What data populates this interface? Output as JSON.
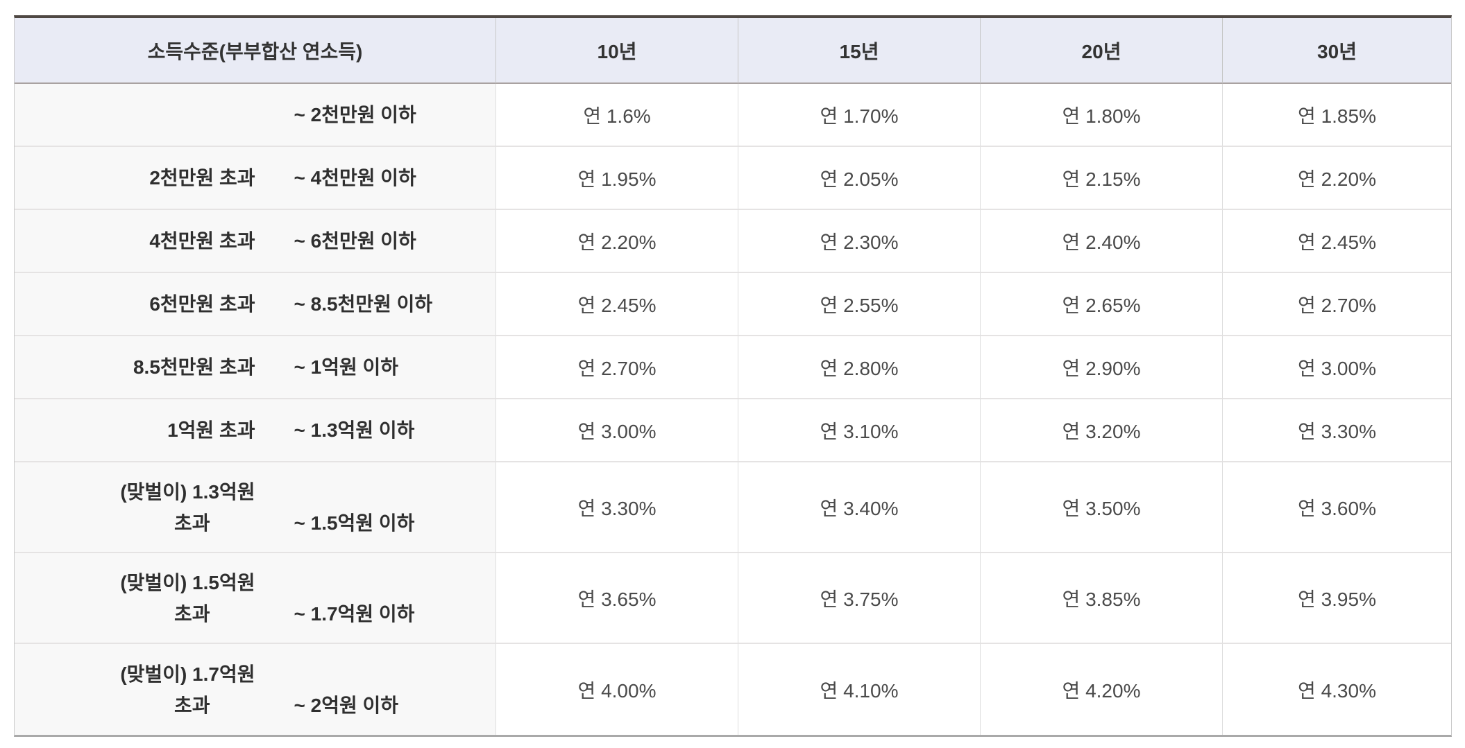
{
  "table": {
    "header": {
      "income_label": "소득수준(부부합산 연소득)",
      "terms": [
        "10년",
        "15년",
        "20년",
        "30년"
      ]
    },
    "rows": [
      {
        "income": {
          "lines": [
            {
              "left": "",
              "right": "~ 2천만원 이하"
            }
          ]
        },
        "rates": [
          "연 1.6%",
          "연 1.70%",
          "연 1.80%",
          "연 1.85%"
        ]
      },
      {
        "income": {
          "lines": [
            {
              "left": "2천만원 초과",
              "right": "~ 4천만원 이하"
            }
          ]
        },
        "rates": [
          "연 1.95%",
          "연 2.05%",
          "연 2.15%",
          "연 2.20%"
        ]
      },
      {
        "income": {
          "lines": [
            {
              "left": "4천만원 초과",
              "right": "~ 6천만원 이하"
            }
          ]
        },
        "rates": [
          "연 2.20%",
          "연 2.30%",
          "연 2.40%",
          "연 2.45%"
        ]
      },
      {
        "income": {
          "lines": [
            {
              "left": "6천만원 초과",
              "right": "~ 8.5천만원 이하"
            }
          ]
        },
        "rates": [
          "연 2.45%",
          "연 2.55%",
          "연 2.65%",
          "연 2.70%"
        ]
      },
      {
        "income": {
          "lines": [
            {
              "left": "8.5천만원 초과",
              "right": "~ 1억원 이하"
            }
          ]
        },
        "rates": [
          "연 2.70%",
          "연 2.80%",
          "연 2.90%",
          "연 3.00%"
        ]
      },
      {
        "income": {
          "lines": [
            {
              "left": "1억원 초과",
              "right": "~ 1.3억원 이하"
            }
          ]
        },
        "rates": [
          "연 3.00%",
          "연 3.10%",
          "연 3.20%",
          "연 3.30%"
        ]
      },
      {
        "income": {
          "lines": [
            {
              "left": "(맞벌이) 1.3억원",
              "right": ""
            },
            {
              "left": "초과",
              "right": "~ 1.5억원 이하"
            }
          ]
        },
        "rates": [
          "연 3.30%",
          "연 3.40%",
          "연 3.50%",
          "연 3.60%"
        ]
      },
      {
        "income": {
          "lines": [
            {
              "left": "(맞벌이) 1.5억원",
              "right": ""
            },
            {
              "left": "초과",
              "right": "~ 1.7억원 이하"
            }
          ]
        },
        "rates": [
          "연 3.65%",
          "연 3.75%",
          "연 3.85%",
          "연 3.95%"
        ]
      },
      {
        "income": {
          "lines": [
            {
              "left": "(맞벌이) 1.7억원",
              "right": ""
            },
            {
              "left": "초과",
              "right": "~ 2억원 이하"
            }
          ]
        },
        "rates": [
          "연 4.00%",
          "연 4.10%",
          "연 4.20%",
          "연 4.30%"
        ]
      }
    ],
    "colors": {
      "header_bg": "#e9ebf5",
      "income_col_bg": "#f8f8f8",
      "top_border": "#4f4843",
      "bottom_border": "#a9a9a9",
      "row_divider": "#e5e3e3"
    }
  }
}
